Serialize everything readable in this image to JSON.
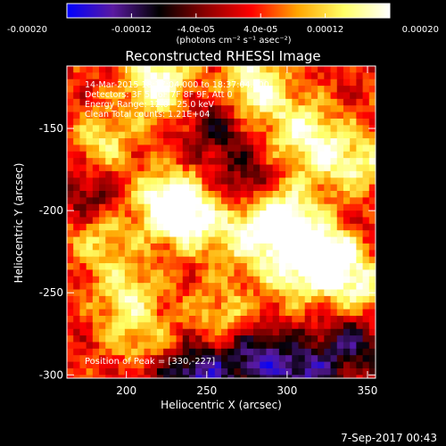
{
  "colors": {
    "background": "#000000",
    "foreground": "#ffffff"
  },
  "colorbar": {
    "tick_labels": [
      "-0.00020",
      "-0.00012",
      "-4.0e-05",
      "4.0e-05",
      "0.00012",
      "0.00020"
    ],
    "unit_label": "(photons cm⁻² s⁻¹ asec⁻²)",
    "range": [
      -0.0002,
      0.0002
    ],
    "colormap_stops": [
      "#0000ff",
      "#5a1aa0",
      "#000000",
      "#8b0000",
      "#ff0000",
      "#ffa500",
      "#ffff66",
      "#ffffff"
    ]
  },
  "chart_data": {
    "type": "heatmap",
    "title": "Reconstructed RHESSI Image",
    "xlabel": "Heliocentric X (arcsec)",
    "ylabel": "Heliocentric Y (arcsec)",
    "xlim": [
      163,
      355
    ],
    "ylim": [
      -302,
      -112
    ],
    "xticks": [
      200,
      250,
      300,
      350
    ],
    "yticks": [
      -150,
      -200,
      -250,
      -300
    ],
    "annotations": [
      "14-Mar-2015 18:27:04.000 to 18:37:04.000",
      "Detectors: 3F 5F 6F 7F 8F 9F, Att 0",
      "Energy Range: 12.0 - 25.0 keV",
      "Clean     Total counts: 1.21E+04"
    ],
    "peak_label": "Position of Peak = [330,-227]",
    "peak_position": [
      330,
      -227
    ],
    "hot_regions": [
      {
        "x": 220,
        "y": -122,
        "v": 0.00018
      },
      {
        "x": 280,
        "y": -124,
        "v": 0.00016
      },
      {
        "x": 305,
        "y": -150,
        "v": 0.00012
      },
      {
        "x": 325,
        "y": -165,
        "v": 0.00012
      },
      {
        "x": 225,
        "y": -195,
        "v": 0.00018
      },
      {
        "x": 240,
        "y": -205,
        "v": 0.00015
      },
      {
        "x": 275,
        "y": -215,
        "v": 0.00013
      },
      {
        "x": 300,
        "y": -205,
        "v": 0.00019
      },
      {
        "x": 305,
        "y": -235,
        "v": 0.00015
      },
      {
        "x": 330,
        "y": -227,
        "v": 0.0002
      },
      {
        "x": 345,
        "y": -250,
        "v": 0.00012
      },
      {
        "x": 200,
        "y": -250,
        "v": 0.00011
      },
      {
        "x": 185,
        "y": -215,
        "v": 0.0001
      },
      {
        "x": 210,
        "y": -280,
        "v": 0.0001
      },
      {
        "x": 260,
        "y": -265,
        "v": 0.0001
      },
      {
        "x": 185,
        "y": -160,
        "v": 0.00011
      },
      {
        "x": 350,
        "y": -175,
        "v": 0.0001
      }
    ],
    "cold_regions": [
      {
        "x": 180,
        "y": -190,
        "v": -0.0001
      },
      {
        "x": 255,
        "y": -150,
        "v": -0.0001
      },
      {
        "x": 275,
        "y": -180,
        "v": -8e-05
      },
      {
        "x": 340,
        "y": -280,
        "v": -0.00014
      },
      {
        "x": 280,
        "y": -290,
        "v": -0.00016
      },
      {
        "x": 245,
        "y": -300,
        "v": -0.00018
      },
      {
        "x": 310,
        "y": -300,
        "v": -0.00016
      },
      {
        "x": 215,
        "y": -300,
        "v": -6e-05
      },
      {
        "x": 345,
        "y": -210,
        "v": -5e-05
      }
    ]
  },
  "footer": {
    "timestamp": "7-Sep-2017 00:43"
  }
}
